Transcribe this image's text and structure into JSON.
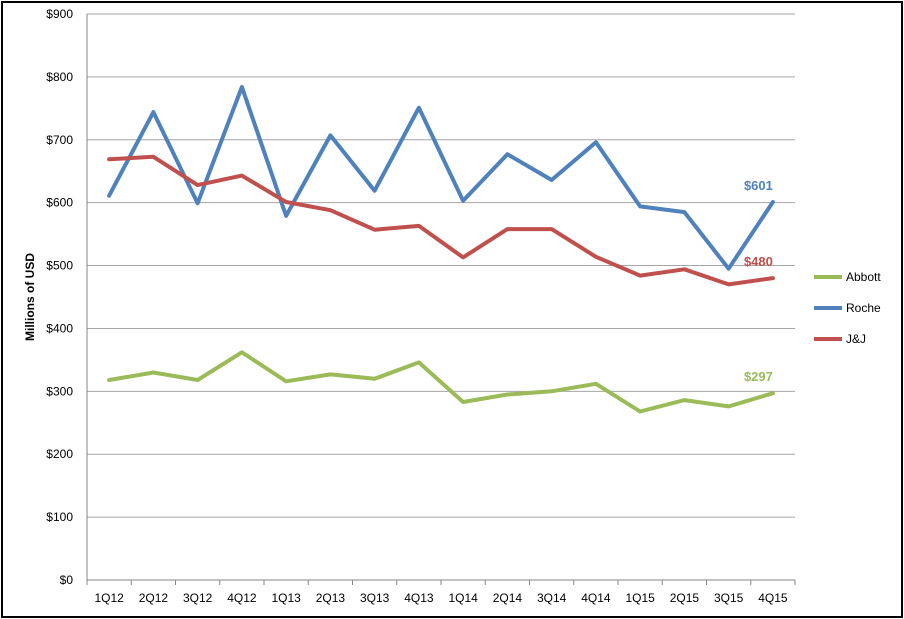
{
  "chart_data": {
    "type": "line",
    "ylabel": "Millions of USD",
    "ylim": [
      0,
      900
    ],
    "yticks": [
      "$0",
      "$100",
      "$200",
      "$300",
      "$400",
      "$500",
      "$600",
      "$700",
      "$800",
      "$900"
    ],
    "categories": [
      "1Q12",
      "2Q12",
      "3Q12",
      "4Q12",
      "1Q13",
      "2Q13",
      "3Q13",
      "4Q13",
      "1Q14",
      "2Q14",
      "3Q14",
      "4Q14",
      "1Q15",
      "2Q15",
      "3Q15",
      "4Q15"
    ],
    "grid": "horizontal",
    "legend_position": "right",
    "series": [
      {
        "name": "Abbott",
        "color": "#9bbb59",
        "end_label": "$297",
        "values": [
          318,
          330,
          318,
          362,
          316,
          327,
          320,
          346,
          283,
          295,
          300,
          312,
          268,
          286,
          276,
          297
        ]
      },
      {
        "name": "Roche",
        "color": "#4f81bd",
        "end_label": "$601",
        "values": [
          611,
          744,
          599,
          784,
          579,
          707,
          619,
          751,
          603,
          677,
          636,
          696,
          594,
          585,
          495,
          601
        ]
      },
      {
        "name": "J&J",
        "color": "#c0504d",
        "end_label": "$480",
        "values": [
          669,
          673,
          628,
          643,
          601,
          588,
          557,
          563,
          513,
          558,
          558,
          514,
          484,
          494,
          470,
          480
        ]
      }
    ]
  }
}
